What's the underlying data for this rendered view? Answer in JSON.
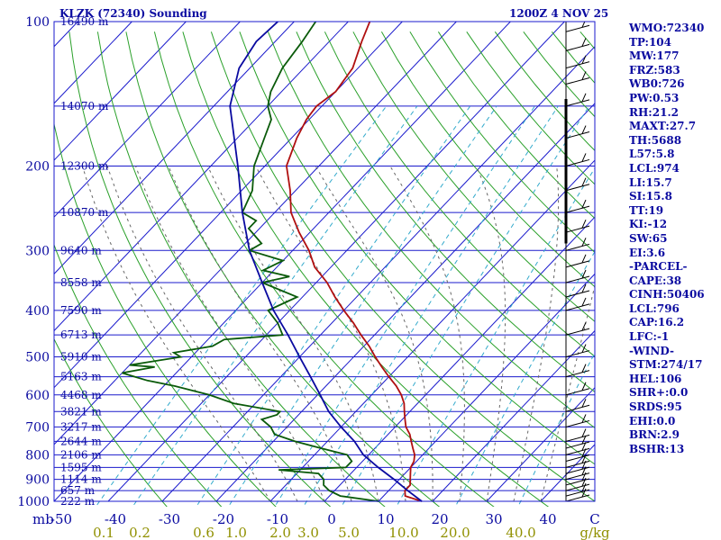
{
  "header": {
    "station": "KLZK (72340) Sounding",
    "time": "1200Z  4 NOV 25"
  },
  "indices": [
    "WMO:72340",
    "TP:104",
    "MW:177",
    "FRZ:583",
    "WB0:726",
    "PW:0.53",
    "RH:21.2",
    "MAXT:27.7",
    "TH:5688",
    "L57:5.8",
    "LCL:974",
    "LI:15.7",
    "SI:15.8",
    "TT:19",
    "KI:-12",
    "SW:65",
    "EI:3.6",
    "-PARCEL-",
    "CAPE:38",
    "CINH:50406",
    "LCL:796",
    "CAP:16.2",
    "LFC:-1",
    "-WIND-",
    "STM:274/17",
    "HEL:106",
    "SHR+:0.0",
    "SRDS:95",
    "EHI:0.0",
    "BRN:2.9",
    "BSHR:13"
  ],
  "colors": {
    "isobar": "#1a1acc",
    "isotherm": "#1a1acc",
    "dry_adiabat": "#2aa02a",
    "mixing_ratio": "#33aacc",
    "moist_adiabat": "#666666",
    "temperature": "#b01010",
    "dewpoint": "#0a5a0a",
    "parcel": "#0a0aa0",
    "text": "#0a0aa0"
  },
  "chart_data": {
    "type": "line",
    "title": "KLZK (72340) Sounding",
    "ylabel": "mb",
    "xlabel": "",
    "xlim": [
      -50,
      50
    ],
    "ylim": [
      1000,
      100
    ],
    "y_scale": "log",
    "x_ticks": [
      "-50",
      "-40",
      "-30",
      "-20",
      "-10",
      "0",
      "10",
      "20",
      "30",
      "40"
    ],
    "x_axis_end_label": "C",
    "pressure_ticks": [
      "100",
      "200",
      "300",
      "400",
      "500",
      "600",
      "700",
      "800",
      "900",
      "1000"
    ],
    "height_labels": [
      {
        "p": 100,
        "label": "16490 m"
      },
      {
        "p": 150,
        "label": "14070 m"
      },
      {
        "p": 200,
        "label": "12300 m"
      },
      {
        "p": 250,
        "label": "10870 m"
      },
      {
        "p": 300,
        "label": "9640 m"
      },
      {
        "p": 350,
        "label": "8558 m"
      },
      {
        "p": 400,
        "label": "7590 m"
      },
      {
        "p": 450,
        "label": "6713 m"
      },
      {
        "p": 500,
        "label": "5910 m"
      },
      {
        "p": 550,
        "label": "5163 m"
      },
      {
        "p": 600,
        "label": "4468 m"
      },
      {
        "p": 650,
        "label": "3821 m"
      },
      {
        "p": 700,
        "label": "3217 m"
      },
      {
        "p": 750,
        "label": "2644 m"
      },
      {
        "p": 800,
        "label": "2106 m"
      },
      {
        "p": 850,
        "label": "1595 m"
      },
      {
        "p": 900,
        "label": "1114 m"
      },
      {
        "p": 950,
        "label": "657 m"
      },
      {
        "p": 1000,
        "label": "222 m"
      }
    ],
    "mixing_ratio_labels": [
      "0.1",
      "0.2",
      "0.6",
      "1.0",
      "2.0",
      "3.0",
      "5.0",
      "10.0",
      "20.0",
      "40.0"
    ],
    "mixing_ratio_values": [
      0.1,
      0.2,
      0.6,
      1.0,
      2.0,
      3.0,
      5.0,
      10.0,
      20.0,
      40.0
    ],
    "mixing_ratio_unit": "g/kg",
    "series": [
      {
        "id": "temperature",
        "p": [
          1000,
          975,
          950,
          925,
          900,
          875,
          850,
          825,
          800,
          775,
          750,
          725,
          700,
          675,
          650,
          625,
          600,
          575,
          550,
          525,
          500,
          475,
          450,
          425,
          400,
          375,
          350,
          325,
          300,
          275,
          250,
          225,
          200,
          175,
          160,
          150,
          140,
          125,
          110,
          100
        ],
        "t": [
          18,
          14,
          13,
          13,
          12,
          11,
          10,
          9.5,
          8.5,
          7,
          5.5,
          4,
          2,
          0.5,
          -1,
          -2.5,
          -4.5,
          -7,
          -10,
          -13,
          -16,
          -19,
          -22.5,
          -26,
          -30,
          -34,
          -38,
          -43,
          -47,
          -52,
          -57,
          -61,
          -66,
          -69,
          -70.5,
          -71,
          -70,
          -71,
          -74,
          -76
        ]
      },
      {
        "id": "dewpoint",
        "p": [
          1000,
          975,
          950,
          925,
          900,
          875,
          860,
          850,
          825,
          800,
          775,
          750,
          725,
          700,
          675,
          660,
          650,
          625,
          600,
          575,
          560,
          550,
          540,
          525,
          520,
          510,
          500,
          490,
          475,
          460,
          450,
          425,
          400,
          375,
          350,
          340,
          330,
          315,
          300,
          290,
          270,
          260,
          250,
          225,
          200,
          175,
          160,
          150,
          140,
          125,
          110,
          100
        ],
        "t": [
          10,
          2,
          -1,
          -3,
          -4,
          -6,
          -14,
          -2,
          -2,
          -4,
          -10,
          -16,
          -21,
          -23,
          -26,
          -24,
          -24,
          -34,
          -40,
          -48,
          -54,
          -57,
          -60,
          -55,
          -60,
          -56,
          -52,
          -54,
          -48,
          -47,
          -37,
          -40,
          -44,
          -41,
          -50,
          -46,
          -52,
          -50,
          -58,
          -57,
          -62,
          -62,
          -66,
          -68,
          -72,
          -75,
          -77,
          -80,
          -82,
          -84,
          -85,
          -86
        ]
      },
      {
        "id": "parcel",
        "p": [
          1000,
          950,
          900,
          850,
          800,
          750,
          700,
          650,
          600,
          550,
          500,
          450,
          400,
          350,
          300,
          250,
          200,
          150,
          125,
          110,
          100
        ],
        "t": [
          18,
          13.5,
          9,
          4,
          -1,
          -5,
          -10,
          -15,
          -19.5,
          -24.5,
          -30,
          -36,
          -43,
          -50,
          -58,
          -66,
          -75,
          -87,
          -92,
          -93.5,
          -93
        ]
      }
    ],
    "wind_barb_levels": [
      1000,
      975,
      950,
      925,
      900,
      875,
      850,
      825,
      800,
      775,
      750,
      700,
      650,
      600,
      550,
      500,
      450,
      400,
      375,
      350,
      325,
      300,
      275,
      250,
      225,
      200,
      175,
      150,
      135,
      125,
      115,
      105,
      100
    ]
  }
}
